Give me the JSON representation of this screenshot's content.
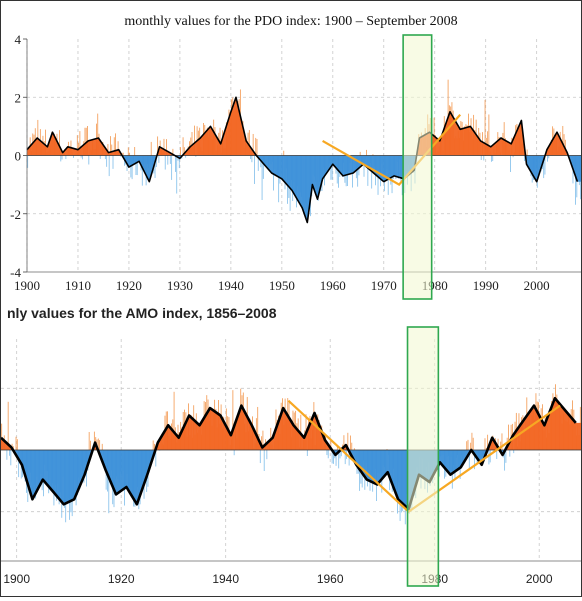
{
  "chart_data": [
    {
      "type": "bar",
      "title": "monthly values for the PDO index: 1900 – September 2008",
      "xlabel": "",
      "ylabel": "",
      "xlim": [
        1900,
        2008.7
      ],
      "ylim": [
        -4,
        4
      ],
      "x_ticks": [
        1900,
        1910,
        1920,
        1930,
        1940,
        1950,
        1960,
        1970,
        1980,
        1990,
        2000
      ],
      "x_tick_labels": [
        "1900",
        "1910",
        "1920",
        "1930",
        "1940",
        "1950",
        "1960",
        "1970",
        "1980",
        "1990",
        "2000"
      ],
      "y_ticks": [
        -4,
        -2,
        0,
        2,
        4
      ],
      "y_tick_labels": [
        "-4",
        "-2",
        "0",
        "2",
        "4"
      ],
      "grid": true,
      "smoothed_series": {
        "x": [
          1900,
          1902,
          1904,
          1905,
          1907,
          1908,
          1910,
          1912,
          1914,
          1916,
          1918,
          1920,
          1922,
          1924,
          1926,
          1928,
          1930,
          1932,
          1934,
          1936,
          1938,
          1940,
          1941,
          1943,
          1945,
          1947,
          1948,
          1950,
          1952,
          1954,
          1955,
          1956,
          1957,
          1958,
          1960,
          1962,
          1964,
          1966,
          1968,
          1970,
          1972,
          1974,
          1976,
          1977,
          1979,
          1981,
          1983,
          1985,
          1987,
          1989,
          1991,
          1993,
          1995,
          1997,
          1998,
          2000,
          2002,
          2004,
          2006,
          2008
        ],
        "y": [
          0.2,
          0.6,
          0.3,
          0.8,
          0.1,
          0.3,
          0.2,
          0.5,
          0.6,
          0.1,
          0.2,
          -0.4,
          -0.2,
          -0.9,
          0.3,
          0.1,
          -0.1,
          0.3,
          0.6,
          1.0,
          0.4,
          1.5,
          2.0,
          0.5,
          0.0,
          -0.4,
          -0.6,
          -0.8,
          -1.2,
          -1.8,
          -2.3,
          -1.0,
          -1.5,
          -0.8,
          -0.3,
          -0.7,
          -0.6,
          -0.3,
          -0.6,
          -0.9,
          -0.7,
          -0.8,
          -0.5,
          0.6,
          0.8,
          0.5,
          1.5,
          0.9,
          1.0,
          0.5,
          0.3,
          0.6,
          0.4,
          1.2,
          -0.3,
          -0.9,
          0.2,
          0.8,
          0.1,
          -0.9
        ]
      },
      "annotations": {
        "trend_lines": [
          {
            "x": [
              1958,
              1973,
              1985
            ],
            "y": [
              0.5,
              -1.0,
              1.4
            ]
          }
        ],
        "highlight_band": {
          "x_range": [
            1973.8,
            1979.4
          ]
        }
      },
      "colors": {
        "positive": "#f26522",
        "negative": "#3b8fd8",
        "positive_light": "#f4a261",
        "negative_light": "#8cc4ec",
        "smoothed": "#000000",
        "trend": "#f7a823",
        "band_fill": "#f3f7cf",
        "band_stroke": "#2fa84f"
      }
    },
    {
      "type": "bar",
      "title": "nly values for the AMO index, 1856–2008",
      "xlabel": "",
      "ylabel": "",
      "xlim": [
        1897,
        2008
      ],
      "ylim": [
        -0.45,
        0.45
      ],
      "x_ticks": [
        1900,
        1920,
        1940,
        1960,
        1980,
        2000
      ],
      "x_tick_labels": [
        "1900",
        "1920",
        "1940",
        "1960",
        "1980",
        "2000"
      ],
      "grid": true,
      "smoothed_series": {
        "x": [
          1897,
          1899,
          1901,
          1903,
          1905,
          1907,
          1909,
          1911,
          1913,
          1915,
          1917,
          1919,
          1921,
          1923,
          1925,
          1927,
          1929,
          1931,
          1933,
          1935,
          1937,
          1939,
          1941,
          1943,
          1945,
          1947,
          1949,
          1951,
          1953,
          1955,
          1957,
          1959,
          1961,
          1963,
          1965,
          1967,
          1969,
          1971,
          1973,
          1975,
          1977,
          1979,
          1981,
          1983,
          1985,
          1987,
          1989,
          1991,
          1993,
          1995,
          1997,
          1999,
          2001,
          2003,
          2005,
          2007
        ],
        "y": [
          0.05,
          0.01,
          -0.06,
          -0.2,
          -0.12,
          -0.17,
          -0.22,
          -0.2,
          -0.1,
          0.03,
          -0.08,
          -0.18,
          -0.15,
          -0.22,
          -0.1,
          0.03,
          0.1,
          0.05,
          0.14,
          0.1,
          0.17,
          0.14,
          0.06,
          0.18,
          0.1,
          0.01,
          0.05,
          0.17,
          0.1,
          0.05,
          0.15,
          0.04,
          -0.02,
          0.02,
          -0.06,
          -0.12,
          -0.14,
          -0.09,
          -0.2,
          -0.24,
          -0.1,
          -0.13,
          -0.05,
          -0.1,
          -0.07,
          0.0,
          -0.06,
          0.05,
          -0.02,
          0.06,
          0.12,
          0.18,
          0.1,
          0.21,
          0.16,
          0.11
        ]
      },
      "annotations": {
        "trend_lines": [
          {
            "x": [
              1952,
              1975,
              2004
            ],
            "y": [
              0.2,
              -0.25,
              0.18
            ]
          }
        ],
        "highlight_band": {
          "x_range": [
            1974.8,
            1980.7
          ]
        }
      },
      "colors": {
        "positive": "#f26522",
        "negative": "#3b8fd8",
        "positive_light": "#f4a261",
        "negative_light": "#8cc4ec",
        "smoothed": "#000000",
        "trend": "#f7a823",
        "band_fill": "#f3f7cf",
        "band_stroke": "#2fa84f"
      }
    }
  ]
}
